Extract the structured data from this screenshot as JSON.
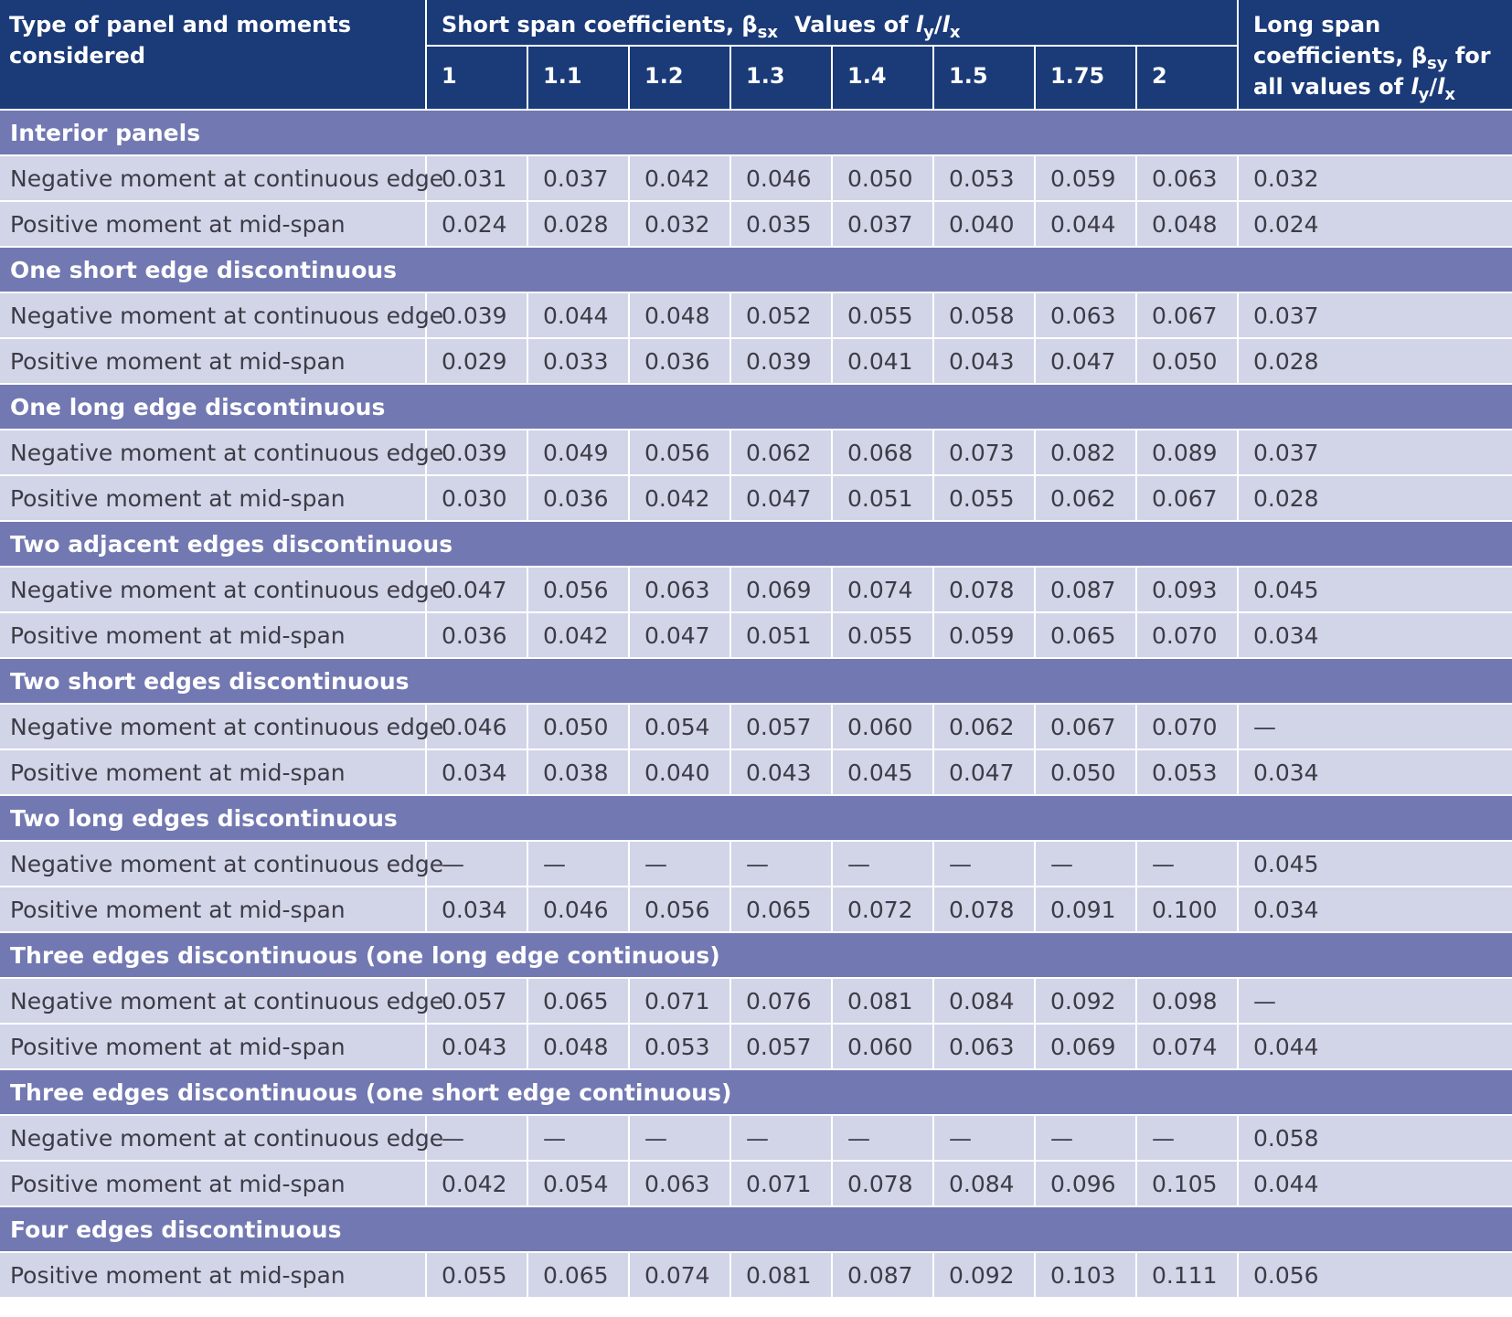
{
  "header": {
    "corner_label": "Type of panel and moments considered",
    "short_span_prefix": "Short span coefficients, β",
    "short_span_sub": "sx",
    "values_of": "Values of",
    "ly": "l",
    "ly_sub": "y",
    "slash": "/",
    "lx": "l",
    "lx_sub": "x",
    "ratios": [
      "1",
      "1.1",
      "1.2",
      "1.3",
      "1.4",
      "1.5",
      "1.75",
      "2"
    ],
    "long_span_line1": "Long span",
    "long_span_line2": "coefficients, β",
    "long_span_sub": "sy",
    "long_span_for": "for",
    "long_span_line3": "all values of"
  },
  "groups": [
    {
      "title": "Interior panels",
      "rows": [
        {
          "label": "Negative moment at continuous edge",
          "values": [
            "0.031",
            "0.037",
            "0.042",
            "0.046",
            "0.050",
            "0.053",
            "0.059",
            "0.063"
          ],
          "long": "0.032"
        },
        {
          "label": "Positive moment at mid-span",
          "values": [
            "0.024",
            "0.028",
            "0.032",
            "0.035",
            "0.037",
            "0.040",
            "0.044",
            "0.048"
          ],
          "long": "0.024"
        }
      ]
    },
    {
      "title": "One short edge discontinuous",
      "rows": [
        {
          "label": "Negative moment at continuous edge",
          "values": [
            "0.039",
            "0.044",
            "0.048",
            "0.052",
            "0.055",
            "0.058",
            "0.063",
            "0.067"
          ],
          "long": "0.037"
        },
        {
          "label": "Positive moment at mid-span",
          "values": [
            "0.029",
            "0.033",
            "0.036",
            "0.039",
            "0.041",
            "0.043",
            "0.047",
            "0.050"
          ],
          "long": "0.028"
        }
      ]
    },
    {
      "title": "One long edge discontinuous",
      "rows": [
        {
          "label": "Negative moment at continuous edge",
          "values": [
            "0.039",
            "0.049",
            "0.056",
            "0.062",
            "0.068",
            "0.073",
            "0.082",
            "0.089"
          ],
          "long": "0.037"
        },
        {
          "label": "Positive moment at mid-span",
          "values": [
            "0.030",
            "0.036",
            "0.042",
            "0.047",
            "0.051",
            "0.055",
            "0.062",
            "0.067"
          ],
          "long": "0.028"
        }
      ]
    },
    {
      "title": "Two adjacent edges discontinuous",
      "rows": [
        {
          "label": "Negative moment at continuous edge",
          "values": [
            "0.047",
            "0.056",
            "0.063",
            "0.069",
            "0.074",
            "0.078",
            "0.087",
            "0.093"
          ],
          "long": "0.045"
        },
        {
          "label": "Positive moment at mid-span",
          "values": [
            "0.036",
            "0.042",
            "0.047",
            "0.051",
            "0.055",
            "0.059",
            "0.065",
            "0.070"
          ],
          "long": "0.034"
        }
      ]
    },
    {
      "title": "Two short edges discontinuous",
      "rows": [
        {
          "label": "Negative moment at continuous edge",
          "values": [
            "0.046",
            "0.050",
            "0.054",
            "0.057",
            "0.060",
            "0.062",
            "0.067",
            "0.070"
          ],
          "long": "—"
        },
        {
          "label": "Positive moment at mid-span",
          "values": [
            "0.034",
            "0.038",
            "0.040",
            "0.043",
            "0.045",
            "0.047",
            "0.050",
            "0.053"
          ],
          "long": "0.034"
        }
      ]
    },
    {
      "title": "Two long edges discontinuous",
      "rows": [
        {
          "label": "Negative moment at continuous edge",
          "values": [
            "—",
            "—",
            "—",
            "—",
            "—",
            "—",
            "—",
            "—"
          ],
          "long": "0.045"
        },
        {
          "label": "Positive moment at mid-span",
          "values": [
            "0.034",
            "0.046",
            "0.056",
            "0.065",
            "0.072",
            "0.078",
            "0.091",
            "0.100"
          ],
          "long": "0.034"
        }
      ]
    },
    {
      "title": "Three edges discontinuous (one long edge continuous)",
      "rows": [
        {
          "label": "Negative moment at continuous edge",
          "values": [
            "0.057",
            "0.065",
            "0.071",
            "0.076",
            "0.081",
            "0.084",
            "0.092",
            "0.098"
          ],
          "long": "—"
        },
        {
          "label": "Positive moment at mid-span",
          "values": [
            "0.043",
            "0.048",
            "0.053",
            "0.057",
            "0.060",
            "0.063",
            "0.069",
            "0.074"
          ],
          "long": "0.044"
        }
      ]
    },
    {
      "title": "Three edges discontinuous (one short edge continuous)",
      "rows": [
        {
          "label": "Negative moment at continuous edge",
          "values": [
            "—",
            "—",
            "—",
            "—",
            "—",
            "—",
            "—",
            "—"
          ],
          "long": "0.058"
        },
        {
          "label": "Positive moment at mid-span",
          "values": [
            "0.042",
            "0.054",
            "0.063",
            "0.071",
            "0.078",
            "0.084",
            "0.096",
            "0.105"
          ],
          "long": "0.044"
        }
      ]
    },
    {
      "title": "Four edges discontinuous",
      "rows": [
        {
          "label": "Positive moment at mid-span",
          "values": [
            "0.055",
            "0.065",
            "0.074",
            "0.081",
            "0.087",
            "0.092",
            "0.103",
            "0.111"
          ],
          "long": "0.056"
        }
      ]
    }
  ]
}
